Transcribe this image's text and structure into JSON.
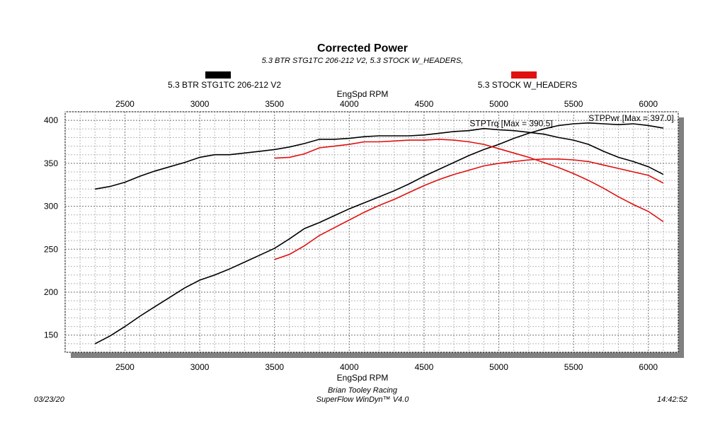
{
  "chart_data": {
    "type": "line",
    "title": "Corrected Power",
    "subtitle": "5.3 BTR STG1TC 206-212 V2, 5.3 STOCK W_HEADERS,",
    "xlabel": "EngSpd RPM",
    "xlim": [
      2100,
      6200
    ],
    "ylim": [
      130,
      410
    ],
    "xticks": [
      2500,
      3000,
      3500,
      4000,
      4500,
      5000,
      5500,
      6000
    ],
    "yticks": [
      150,
      200,
      250,
      300,
      350,
      400
    ],
    "grid": true,
    "legend": [
      {
        "name": "5.3 BTR STG1TC 206-212 V2",
        "color": "#000000",
        "position": "top-left"
      },
      {
        "name": "5.3 STOCK W_HEADERS",
        "color": "#e01010",
        "position": "top-right"
      }
    ],
    "annotations": [
      {
        "text": "STPTrq [Max = 390.5]",
        "x": 4900,
        "y": 390.5
      },
      {
        "text": "STPPwr [Max = 397.0]",
        "x": 5600,
        "y": 397.0
      }
    ],
    "series": [
      {
        "run": "5.3 BTR STG1TC 206-212 V2",
        "channel": "STPTrq",
        "color": "#000000",
        "x": [
          2300,
          2400,
          2500,
          2600,
          2700,
          2800,
          2900,
          3000,
          3100,
          3200,
          3300,
          3400,
          3500,
          3600,
          3700,
          3800,
          3900,
          4000,
          4100,
          4200,
          4300,
          4400,
          4500,
          4600,
          4700,
          4800,
          4900,
          5000,
          5100,
          5200,
          5300,
          5400,
          5500,
          5600,
          5700,
          5800,
          5900,
          6000,
          6100
        ],
        "y": [
          320,
          323,
          328,
          335,
          341,
          346,
          351,
          357,
          360,
          360,
          362,
          364,
          366,
          369,
          373,
          378,
          378,
          379,
          381,
          382,
          382,
          382,
          383,
          385,
          387,
          388,
          390.5,
          389,
          388,
          386,
          384,
          380,
          377,
          372,
          364,
          357,
          352,
          346,
          337
        ]
      },
      {
        "run": "5.3 BTR STG1TC 206-212 V2",
        "channel": "STPPwr",
        "color": "#000000",
        "x": [
          2300,
          2400,
          2500,
          2600,
          2700,
          2800,
          2900,
          3000,
          3100,
          3200,
          3300,
          3400,
          3500,
          3600,
          3700,
          3800,
          3900,
          4000,
          4100,
          4200,
          4300,
          4400,
          4500,
          4600,
          4700,
          4800,
          4900,
          5000,
          5100,
          5200,
          5300,
          5400,
          5500,
          5600,
          5700,
          5800,
          5900,
          6000,
          6100
        ],
        "y": [
          140,
          149,
          160,
          172,
          183,
          194,
          205,
          214,
          220,
          227,
          235,
          243,
          251,
          262,
          274,
          281,
          289,
          297,
          304,
          311,
          318,
          326,
          335,
          343,
          351,
          359,
          366,
          372,
          379,
          385,
          390,
          394,
          396,
          397,
          396,
          395,
          396,
          394,
          391
        ]
      },
      {
        "run": "5.3 STOCK W_HEADERS",
        "channel": "STPTrq",
        "color": "#e01010",
        "x": [
          3500,
          3600,
          3700,
          3800,
          3900,
          4000,
          4100,
          4200,
          4300,
          4400,
          4500,
          4600,
          4700,
          4800,
          4900,
          5000,
          5100,
          5200,
          5300,
          5400,
          5500,
          5600,
          5700,
          5800,
          5900,
          6000,
          6100
        ],
        "y": [
          356,
          357,
          361,
          368,
          370,
          372,
          375,
          375,
          376,
          377,
          377,
          378,
          377,
          375,
          372,
          367,
          362,
          357,
          351,
          345,
          338,
          330,
          321,
          311,
          302,
          294,
          282
        ]
      },
      {
        "run": "5.3 STOCK W_HEADERS",
        "channel": "STPPwr",
        "color": "#e01010",
        "x": [
          3500,
          3600,
          3700,
          3800,
          3900,
          4000,
          4100,
          4200,
          4300,
          4400,
          4500,
          4600,
          4700,
          4800,
          4900,
          5000,
          5100,
          5200,
          5300,
          5400,
          5500,
          5600,
          5700,
          5800,
          5900,
          6000,
          6100
        ],
        "y": [
          238,
          244,
          254,
          266,
          275,
          284,
          293,
          301,
          308,
          316,
          324,
          331,
          337,
          342,
          347,
          350,
          352,
          354,
          355,
          355,
          354,
          352,
          348,
          344,
          340,
          336,
          327
        ]
      }
    ]
  },
  "footer": {
    "date": "03/23/20",
    "time": "14:42:52",
    "company": "Brian Tooley Racing",
    "software": "SuperFlow WinDyn™ V4.0"
  }
}
